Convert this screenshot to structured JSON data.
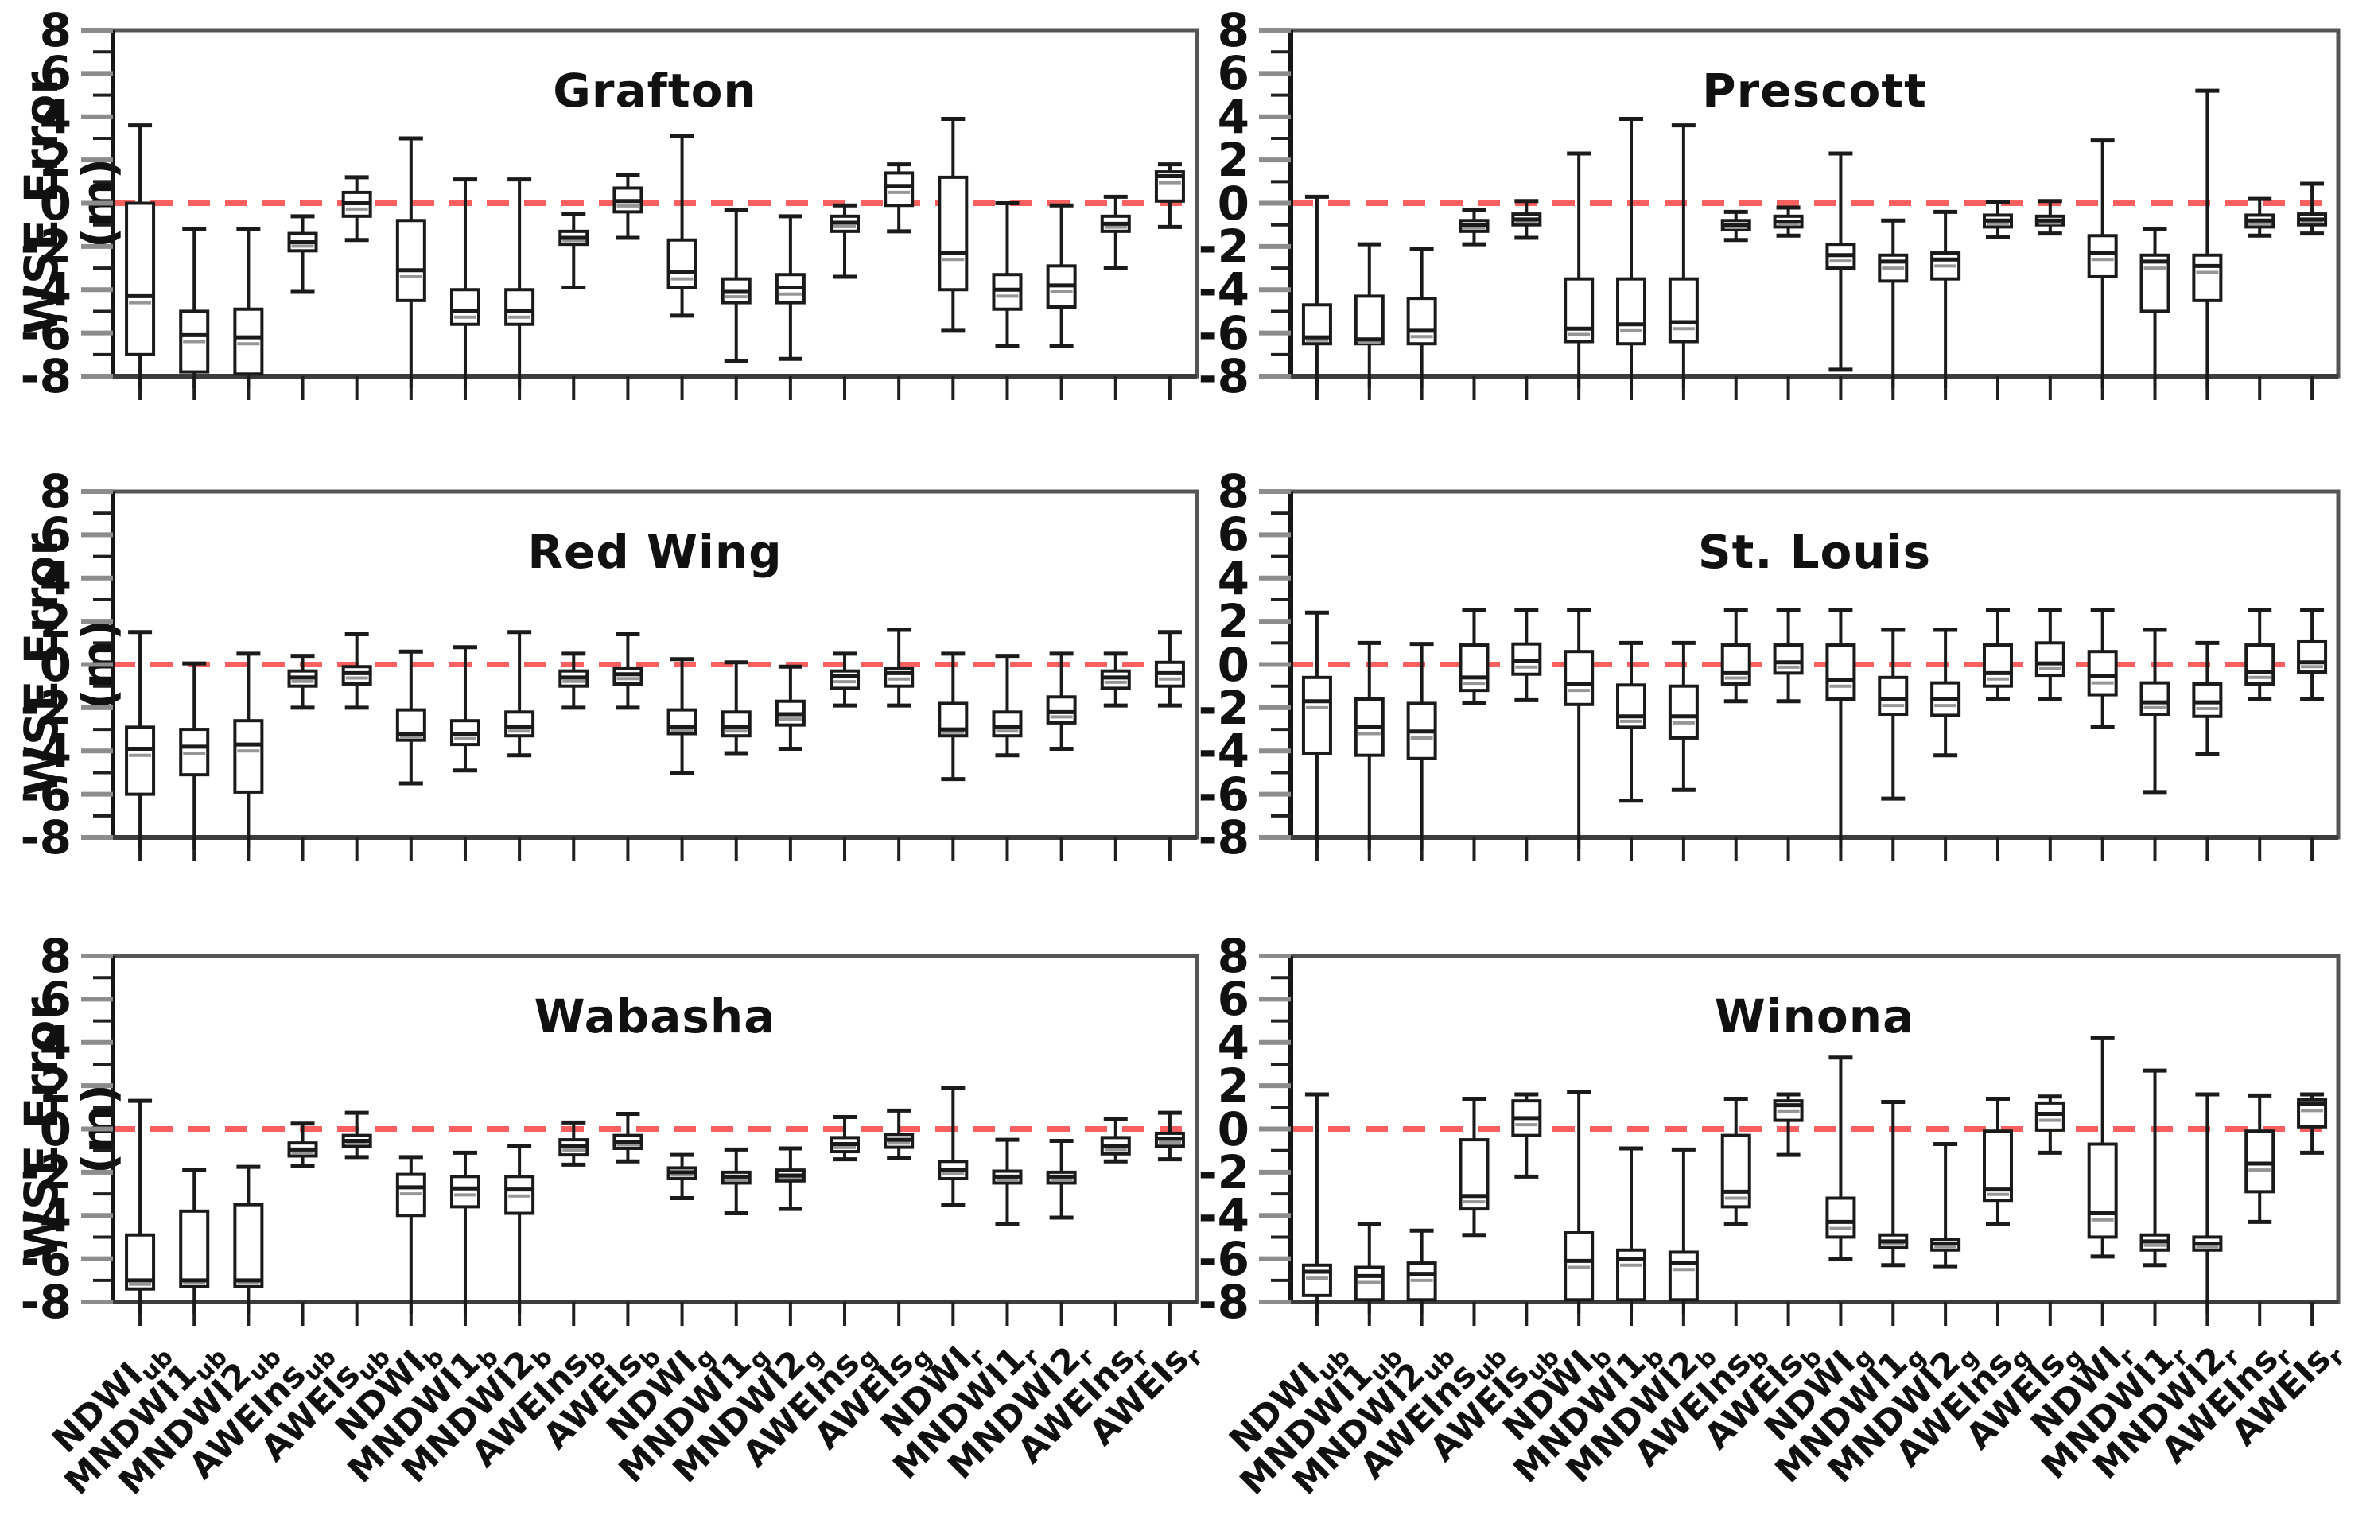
{
  "figure": {
    "ylabel": "WSE Error (m)",
    "background": "#ffffff"
  },
  "axis": {
    "ylim": [
      -8,
      8
    ],
    "ytick_labels": [
      "8",
      "6",
      "4",
      "2",
      "0",
      "-2",
      "-4",
      "-6",
      "-8"
    ],
    "ytick_values": [
      8,
      6,
      4,
      2,
      0,
      -2,
      -4,
      -6,
      -8
    ],
    "minor_tick_every": 1,
    "zero_reference_line": 0
  },
  "colors": {
    "box_stroke": "#1a1a1a",
    "zero_line": "#fb6060",
    "frame": "#555555",
    "major_tick": "#8c8c8c",
    "minor_tick": "#1f1f1f",
    "mean_line": "#969696"
  },
  "categories": [
    {
      "base": "NDWI",
      "sub": "ub"
    },
    {
      "base": "MNDWI1",
      "sub": "ub"
    },
    {
      "base": "MNDWI2",
      "sub": "ub"
    },
    {
      "base": "AWEIns",
      "sub": "ub"
    },
    {
      "base": "AWEIs",
      "sub": "ub"
    },
    {
      "base": "NDWI",
      "sub": "b"
    },
    {
      "base": "MNDWI1",
      "sub": "b"
    },
    {
      "base": "MNDWI2",
      "sub": "b"
    },
    {
      "base": "AWEIns",
      "sub": "b"
    },
    {
      "base": "AWEIs",
      "sub": "b"
    },
    {
      "base": "NDWI",
      "sub": "g"
    },
    {
      "base": "MNDWI1",
      "sub": "g"
    },
    {
      "base": "MNDWI2",
      "sub": "g"
    },
    {
      "base": "AWEIns",
      "sub": "g"
    },
    {
      "base": "AWEIs",
      "sub": "g"
    },
    {
      "base": "NDWI",
      "sub": "r"
    },
    {
      "base": "MNDWI1",
      "sub": "r"
    },
    {
      "base": "MNDWI2",
      "sub": "r"
    },
    {
      "base": "AWEIns",
      "sub": "r"
    },
    {
      "base": "AWEIs",
      "sub": "r"
    }
  ],
  "chart_data": {
    "type": "box",
    "title": "",
    "xlabel": "",
    "ylabel": "WSE Error (m)",
    "ylim": [
      -8,
      8
    ],
    "grid": false,
    "legend": "none",
    "box_stats_format": [
      "whisker_low",
      "q1",
      "median",
      "q3",
      "whisker_high"
    ],
    "clip_below": -8.2,
    "clip_note": "whisker_low values of -8.4 indicate the whisker extends below the -8 axis (clipped)",
    "panels": [
      {
        "title": "Grafton",
        "boxes": [
          [
            -8.4,
            -7.0,
            -4.3,
            0.0,
            3.6
          ],
          [
            -8.4,
            -7.8,
            -6.1,
            -5.0,
            -1.2
          ],
          [
            -8.4,
            -7.9,
            -6.2,
            -4.9,
            -1.2
          ],
          [
            -4.1,
            -2.2,
            -1.8,
            -1.4,
            -0.6
          ],
          [
            -1.7,
            -0.6,
            0.0,
            0.5,
            1.2
          ],
          [
            -8.4,
            -4.5,
            -3.1,
            -0.8,
            3.0
          ],
          [
            -8.4,
            -5.6,
            -5.0,
            -4.0,
            1.1
          ],
          [
            -8.4,
            -5.6,
            -5.0,
            -4.0,
            1.1
          ],
          [
            -3.9,
            -1.9,
            -1.6,
            -1.3,
            -0.5
          ],
          [
            -1.6,
            -0.4,
            0.1,
            0.7,
            1.3
          ],
          [
            -5.2,
            -3.9,
            -3.2,
            -1.7,
            3.1
          ],
          [
            -7.3,
            -4.6,
            -4.1,
            -3.5,
            -0.3
          ],
          [
            -7.2,
            -4.6,
            -3.9,
            -3.3,
            -0.6
          ],
          [
            -3.4,
            -1.3,
            -0.9,
            -0.6,
            -0.1
          ],
          [
            -1.3,
            -0.1,
            0.8,
            1.4,
            1.8
          ],
          [
            -5.9,
            -4.0,
            -2.3,
            1.2,
            3.9
          ],
          [
            -6.6,
            -4.9,
            -4.0,
            -3.3,
            0.0
          ],
          [
            -6.6,
            -4.8,
            -3.8,
            -2.9,
            -0.1
          ],
          [
            -3.0,
            -1.3,
            -0.95,
            -0.6,
            0.3
          ],
          [
            -1.1,
            0.1,
            1.25,
            1.45,
            1.8
          ]
        ]
      },
      {
        "title": "Prescott",
        "boxes": [
          [
            -8.4,
            -6.5,
            -6.2,
            -4.7,
            0.3
          ],
          [
            -8.4,
            -6.5,
            -6.3,
            -4.3,
            -1.9
          ],
          [
            -8.4,
            -6.5,
            -5.9,
            -4.4,
            -2.1
          ],
          [
            -1.9,
            -1.3,
            -1.0,
            -0.8,
            -0.3
          ],
          [
            -1.6,
            -1.0,
            -0.75,
            -0.5,
            0.1
          ],
          [
            -8.4,
            -6.4,
            -5.8,
            -3.5,
            2.3
          ],
          [
            -8.4,
            -6.5,
            -5.6,
            -3.5,
            3.9
          ],
          [
            -8.4,
            -6.4,
            -5.5,
            -3.5,
            3.6
          ],
          [
            -1.7,
            -1.2,
            -1.0,
            -0.8,
            -0.4
          ],
          [
            -1.5,
            -1.1,
            -0.85,
            -0.6,
            -0.2
          ],
          [
            -7.7,
            -3.0,
            -2.4,
            -1.9,
            2.3
          ],
          [
            -8.4,
            -3.6,
            -2.7,
            -2.4,
            -0.8
          ],
          [
            -8.4,
            -3.5,
            -2.6,
            -2.3,
            -0.4
          ],
          [
            -1.55,
            -1.1,
            -0.8,
            -0.55,
            0.05
          ],
          [
            -1.4,
            -1.0,
            -0.8,
            -0.6,
            0.1
          ],
          [
            -8.4,
            -3.4,
            -2.3,
            -1.5,
            2.9
          ],
          [
            -8.4,
            -5.0,
            -2.7,
            -2.4,
            -1.2
          ],
          [
            -8.4,
            -4.5,
            -2.9,
            -2.4,
            5.2
          ],
          [
            -1.5,
            -1.1,
            -0.8,
            -0.55,
            0.2
          ],
          [
            -1.4,
            -1.0,
            -0.75,
            -0.5,
            0.9
          ]
        ]
      },
      {
        "title": "Red Wing",
        "boxes": [
          [
            -8.4,
            -6.0,
            -3.9,
            -2.9,
            1.5
          ],
          [
            -8.4,
            -5.1,
            -3.8,
            -3.0,
            0.05
          ],
          [
            -8.4,
            -5.9,
            -3.7,
            -2.6,
            0.5
          ],
          [
            -2.0,
            -1.0,
            -0.6,
            -0.3,
            0.4
          ],
          [
            -2.0,
            -0.9,
            -0.4,
            -0.1,
            1.4
          ],
          [
            -5.5,
            -3.5,
            -3.2,
            -2.1,
            0.6
          ],
          [
            -4.9,
            -3.7,
            -3.2,
            -2.6,
            0.8
          ],
          [
            -4.2,
            -3.3,
            -2.9,
            -2.2,
            1.5
          ],
          [
            -2.0,
            -1.0,
            -0.6,
            -0.3,
            0.5
          ],
          [
            -2.0,
            -0.9,
            -0.45,
            -0.2,
            1.4
          ],
          [
            -5.0,
            -3.2,
            -2.9,
            -2.1,
            0.25
          ],
          [
            -4.1,
            -3.3,
            -2.9,
            -2.2,
            0.1
          ],
          [
            -3.9,
            -2.8,
            -2.3,
            -1.7,
            -0.1
          ],
          [
            -1.9,
            -1.1,
            -0.55,
            -0.3,
            0.5
          ],
          [
            -1.9,
            -1.0,
            -0.4,
            -0.2,
            1.6
          ],
          [
            -5.3,
            -3.3,
            -3.0,
            -1.8,
            0.5
          ],
          [
            -4.2,
            -3.3,
            -2.9,
            -2.2,
            0.4
          ],
          [
            -3.9,
            -2.7,
            -2.2,
            -1.5,
            0.5
          ],
          [
            -1.9,
            -1.1,
            -0.6,
            -0.3,
            0.5
          ],
          [
            -1.9,
            -1.0,
            -0.4,
            0.1,
            1.5
          ]
        ]
      },
      {
        "title": "St. Louis",
        "boxes": [
          [
            -8.4,
            -4.1,
            -1.7,
            -0.6,
            2.4
          ],
          [
            -8.4,
            -4.2,
            -2.9,
            -1.6,
            1.0
          ],
          [
            -8.4,
            -4.35,
            -3.1,
            -1.8,
            0.95
          ],
          [
            -1.8,
            -1.2,
            -0.6,
            0.9,
            2.5
          ],
          [
            -1.65,
            -0.45,
            0.15,
            0.95,
            2.5
          ],
          [
            -8.4,
            -1.85,
            -0.9,
            0.6,
            2.5
          ],
          [
            -6.3,
            -2.9,
            -2.4,
            -0.95,
            1.0
          ],
          [
            -5.8,
            -3.4,
            -2.4,
            -1.0,
            1.0
          ],
          [
            -1.7,
            -0.9,
            -0.4,
            0.9,
            2.5
          ],
          [
            -1.7,
            -0.4,
            0.1,
            0.9,
            2.5
          ],
          [
            -8.4,
            -1.6,
            -0.7,
            0.9,
            2.5
          ],
          [
            -6.2,
            -2.3,
            -1.6,
            -0.6,
            1.6
          ],
          [
            -4.2,
            -2.35,
            -1.6,
            -0.85,
            1.6
          ],
          [
            -1.6,
            -1.0,
            -0.4,
            0.9,
            2.5
          ],
          [
            -1.6,
            -0.5,
            0.05,
            1.0,
            2.5
          ],
          [
            -2.9,
            -1.4,
            -0.55,
            0.6,
            2.5
          ],
          [
            -5.9,
            -2.3,
            -1.75,
            -0.85,
            1.6
          ],
          [
            -4.15,
            -2.4,
            -1.75,
            -0.9,
            1.0
          ],
          [
            -1.6,
            -0.9,
            -0.35,
            0.9,
            2.5
          ],
          [
            -1.6,
            -0.35,
            0.1,
            1.05,
            2.5
          ]
        ]
      },
      {
        "title": "Wabasha",
        "boxes": [
          [
            -8.4,
            -7.4,
            -7.0,
            -4.9,
            1.3
          ],
          [
            -8.4,
            -7.3,
            -7.0,
            -3.8,
            -1.9
          ],
          [
            -8.4,
            -7.3,
            -7.0,
            -3.5,
            -1.75
          ],
          [
            -1.7,
            -1.25,
            -0.95,
            -0.65,
            0.25
          ],
          [
            -1.3,
            -0.8,
            -0.55,
            -0.3,
            0.75
          ],
          [
            -8.4,
            -4.0,
            -2.7,
            -2.1,
            -1.3
          ],
          [
            -8.4,
            -3.6,
            -2.75,
            -2.2,
            -1.1
          ],
          [
            -8.4,
            -3.9,
            -2.8,
            -2.2,
            -0.8
          ],
          [
            -1.65,
            -1.2,
            -0.8,
            -0.5,
            0.3
          ],
          [
            -1.5,
            -0.9,
            -0.6,
            -0.3,
            0.7
          ],
          [
            -3.2,
            -2.3,
            -2.0,
            -1.8,
            -1.2
          ],
          [
            -3.9,
            -2.5,
            -2.2,
            -2.0,
            -0.95
          ],
          [
            -3.7,
            -2.4,
            -2.15,
            -1.9,
            -0.9
          ],
          [
            -1.4,
            -1.05,
            -0.7,
            -0.4,
            0.55
          ],
          [
            -1.35,
            -0.85,
            -0.5,
            -0.25,
            0.85
          ],
          [
            -3.5,
            -2.3,
            -1.9,
            -1.5,
            1.9
          ],
          [
            -4.4,
            -2.5,
            -2.2,
            -1.95,
            -0.5
          ],
          [
            -4.1,
            -2.5,
            -2.2,
            -2.0,
            -0.55
          ],
          [
            -1.5,
            -1.15,
            -0.8,
            -0.4,
            0.45
          ],
          [
            -1.4,
            -0.8,
            -0.45,
            -0.2,
            0.75
          ]
        ]
      },
      {
        "title": "Winona",
        "boxes": [
          [
            -8.4,
            -7.7,
            -6.6,
            -6.3,
            1.6
          ],
          [
            -8.4,
            -7.9,
            -6.8,
            -6.4,
            -4.4
          ],
          [
            -8.4,
            -7.9,
            -6.7,
            -6.2,
            -4.7
          ],
          [
            -4.9,
            -3.7,
            -3.1,
            -0.5,
            1.4
          ],
          [
            -2.2,
            -0.3,
            0.5,
            1.3,
            1.6
          ],
          [
            -8.4,
            -7.9,
            -6.1,
            -4.8,
            1.7
          ],
          [
            -8.4,
            -7.9,
            -6.0,
            -5.6,
            -0.9
          ],
          [
            -8.4,
            -7.9,
            -6.2,
            -5.7,
            -0.95
          ],
          [
            -4.4,
            -3.6,
            -2.9,
            -0.3,
            1.4
          ],
          [
            -1.2,
            0.4,
            1.1,
            1.3,
            1.6
          ],
          [
            -6.0,
            -5.0,
            -4.3,
            -3.2,
            3.3
          ],
          [
            -6.3,
            -5.5,
            -5.2,
            -4.9,
            1.25
          ],
          [
            -6.35,
            -5.6,
            -5.3,
            -5.1,
            -0.7
          ],
          [
            -4.4,
            -3.3,
            -2.8,
            -0.1,
            1.4
          ],
          [
            -1.1,
            -0.05,
            0.7,
            1.2,
            1.5
          ],
          [
            -5.9,
            -5.0,
            -3.9,
            -0.7,
            4.2
          ],
          [
            -6.3,
            -5.6,
            -5.2,
            -4.9,
            2.7
          ],
          [
            -8.4,
            -5.6,
            -5.3,
            -5.0,
            1.6
          ],
          [
            -4.3,
            -2.9,
            -1.6,
            -0.1,
            1.55
          ],
          [
            -1.1,
            0.1,
            1.15,
            1.35,
            1.6
          ]
        ]
      }
    ]
  }
}
